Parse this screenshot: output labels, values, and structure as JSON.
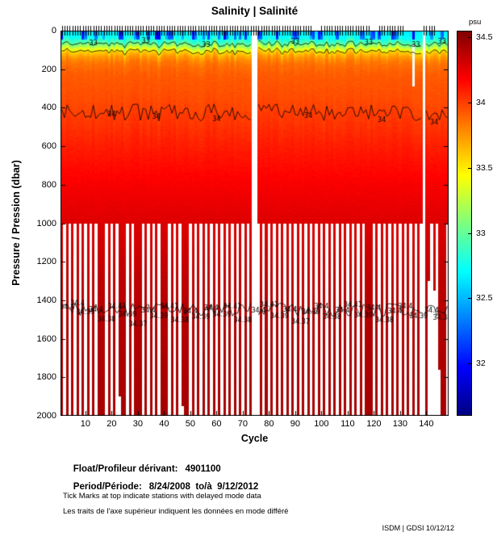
{
  "chart_data": {
    "type": "heatmap",
    "title": "Salinity | Salinité",
    "xlabel": "Cycle",
    "ylabel": "Pressure / Pression (dbar)",
    "x_range": [
      1,
      148
    ],
    "y_range": [
      0,
      2000
    ],
    "x_ticks": [
      10,
      20,
      30,
      40,
      50,
      60,
      70,
      80,
      90,
      100,
      110,
      120,
      130,
      140
    ],
    "y_ticks": [
      0,
      200,
      400,
      600,
      800,
      1000,
      1200,
      1400,
      1600,
      1800,
      2000
    ],
    "grid": false,
    "colorbar": {
      "unit_label": "psu",
      "tick_labels": [
        "34.5",
        "34",
        "33.5",
        "33",
        "32.5",
        "32"
      ],
      "tick_values": [
        34.5,
        34,
        33.5,
        33,
        32.5,
        32
      ],
      "vmin": 31.6,
      "vmax": 34.55,
      "gradient_stops": [
        [
          "#800000",
          0
        ],
        [
          "#ff0000",
          12.5
        ],
        [
          "#ff8000",
          25
        ],
        [
          "#ffff00",
          37.5
        ],
        [
          "#7dff7d",
          50
        ],
        [
          "#00ffff",
          62.5
        ],
        [
          "#0080ff",
          75
        ],
        [
          "#0000ff",
          87.5
        ],
        [
          "#000080",
          100
        ]
      ]
    },
    "profile_points": [
      [
        0,
        32.65
      ],
      [
        40,
        32.75
      ],
      [
        70,
        33.0
      ],
      [
        95,
        33.35
      ],
      [
        115,
        33.6
      ],
      [
        140,
        33.75
      ],
      [
        170,
        33.85
      ],
      [
        230,
        33.92
      ],
      [
        350,
        33.96
      ],
      [
        480,
        34.03
      ],
      [
        600,
        34.1
      ],
      [
        800,
        34.2
      ],
      [
        1000,
        34.28
      ],
      [
        1300,
        34.37
      ],
      [
        1500,
        34.4
      ],
      [
        2000,
        34.44
      ]
    ],
    "contour_levels": [
      {
        "value": 33,
        "search": [
          5,
          200
        ]
      },
      {
        "value": 33.5,
        "search": [
          30,
          300
        ]
      },
      {
        "value": 34,
        "search": [
          250,
          750
        ]
      }
    ],
    "deep_contour": {
      "pressure": 1450,
      "amplitude": 70
    },
    "missing_cycles": [
      74,
      75,
      139
    ],
    "partial_missing": [
      {
        "cycle": 135,
        "from_dbar": 70,
        "to_dbar": 290
      }
    ],
    "deep_bars": {
      "start_dbar": 1000,
      "pattern": "odd-cycles",
      "bottom_exceptions": {
        "23": 1900,
        "47": 1950,
        "141": 1300,
        "143": 1350,
        "145": 1760
      }
    },
    "delayed_tick_ranges": [
      [
        1,
        96
      ],
      [
        100,
        118
      ],
      [
        122,
        131
      ],
      [
        139,
        143
      ]
    ],
    "contour_labels": [
      {
        "c": 13,
        "p": 62,
        "t": "33"
      },
      {
        "c": 33,
        "p": 52,
        "t": "33"
      },
      {
        "c": 56,
        "p": 70,
        "t": "33"
      },
      {
        "c": 90,
        "p": 55,
        "t": "33"
      },
      {
        "c": 118,
        "p": 60,
        "t": "33"
      },
      {
        "c": 136,
        "p": 72,
        "t": "33"
      },
      {
        "c": 146,
        "p": 55,
        "t": "33"
      },
      {
        "c": 20,
        "p": 430,
        "t": "34"
      },
      {
        "c": 37,
        "p": 445,
        "t": "34"
      },
      {
        "c": 60,
        "p": 455,
        "t": "34"
      },
      {
        "c": 95,
        "p": 440,
        "t": "34"
      },
      {
        "c": 123,
        "p": 462,
        "t": "34"
      },
      {
        "c": 143,
        "p": 472,
        "t": "34"
      },
      {
        "c": 3,
        "p": 1435,
        "t": "34.4"
      },
      {
        "c": 7,
        "p": 1415,
        "t": "34.4"
      },
      {
        "c": 10,
        "p": 1460,
        "t": "34.39"
      },
      {
        "c": 14,
        "p": 1445,
        "t": "34.4"
      },
      {
        "c": 18,
        "p": 1495,
        "t": "34.38"
      },
      {
        "c": 22,
        "p": 1430,
        "t": "34.41"
      },
      {
        "c": 26,
        "p": 1470,
        "t": "34.39"
      },
      {
        "c": 30,
        "p": 1520,
        "t": "34.37"
      },
      {
        "c": 34,
        "p": 1450,
        "t": "34.4"
      },
      {
        "c": 38,
        "p": 1480,
        "t": "34.39"
      },
      {
        "c": 42,
        "p": 1430,
        "t": "34.41"
      },
      {
        "c": 46,
        "p": 1500,
        "t": "34.38"
      },
      {
        "c": 50,
        "p": 1455,
        "t": "34.4"
      },
      {
        "c": 54,
        "p": 1485,
        "t": "34.39"
      },
      {
        "c": 58,
        "p": 1440,
        "t": "34.4"
      },
      {
        "c": 62,
        "p": 1470,
        "t": "34.39"
      },
      {
        "c": 66,
        "p": 1430,
        "t": "34.41"
      },
      {
        "c": 70,
        "p": 1500,
        "t": "34.38"
      },
      {
        "c": 76,
        "p": 1450,
        "t": "34.4"
      },
      {
        "c": 80,
        "p": 1420,
        "t": "34.41"
      },
      {
        "c": 84,
        "p": 1480,
        "t": "34.39"
      },
      {
        "c": 88,
        "p": 1445,
        "t": "34.4"
      },
      {
        "c": 92,
        "p": 1510,
        "t": "34.37"
      },
      {
        "c": 96,
        "p": 1460,
        "t": "34.39"
      },
      {
        "c": 100,
        "p": 1430,
        "t": "34.4"
      },
      {
        "c": 104,
        "p": 1485,
        "t": "34.38"
      },
      {
        "c": 108,
        "p": 1450,
        "t": "34.4"
      },
      {
        "c": 112,
        "p": 1420,
        "t": "34.41"
      },
      {
        "c": 116,
        "p": 1475,
        "t": "34.39"
      },
      {
        "c": 120,
        "p": 1440,
        "t": "34.4"
      },
      {
        "c": 124,
        "p": 1500,
        "t": "34.38"
      },
      {
        "c": 128,
        "p": 1455,
        "t": "34.4"
      },
      {
        "c": 132,
        "p": 1430,
        "t": "34.4"
      },
      {
        "c": 137,
        "p": 1480,
        "t": "34.39"
      },
      {
        "c": 142,
        "p": 1450,
        "t": "34.4"
      },
      {
        "c": 146,
        "p": 1490,
        "t": "34.38"
      }
    ]
  },
  "info": {
    "float_label": "Float/Profileur dérivant:",
    "float_value": "4901100",
    "period_label": "Period/Période:",
    "period_value": "8/24/2008  to/à  9/12/2012",
    "note_en": "Tick Marks at top indicate stations with delayed mode data",
    "note_fr": "Les traits de l'axe supérieur indiquent les données en mode différé"
  },
  "footer": {
    "credit": "ISDM | GDSI  10/12/12"
  }
}
